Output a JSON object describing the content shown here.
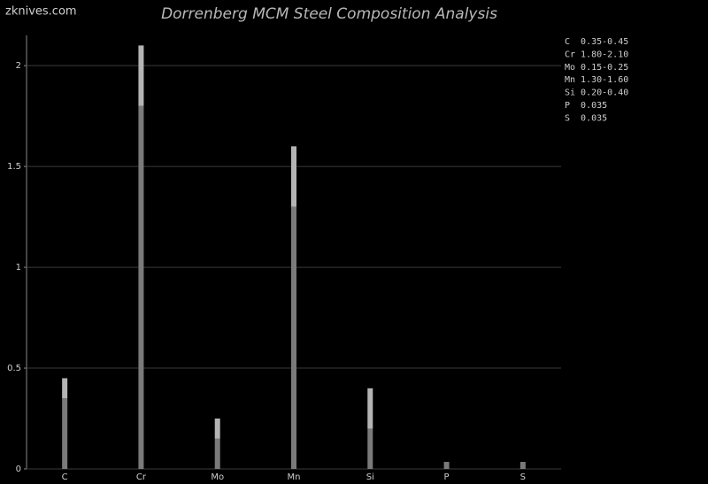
{
  "chart_data": {
    "type": "bar",
    "stacked": true,
    "title": "Dorrenberg MCM Steel Composition Analysis",
    "watermark": "zknives.com",
    "categories": [
      "C",
      "Cr",
      "Mo",
      "Mn",
      "Si",
      "P",
      "S"
    ],
    "series": [
      {
        "color": "#7a7a7a",
        "values": [
          0.35,
          1.8,
          0.15,
          1.3,
          0.2,
          0.035,
          0.035
        ]
      },
      {
        "color": "#b4b4b4",
        "values": [
          0.1,
          0.3,
          0.1,
          0.3,
          0.2,
          null,
          null
        ]
      }
    ],
    "ylim": [
      0,
      2.15
    ],
    "yticks": [
      0,
      0.5,
      1,
      1.5,
      2
    ],
    "grid": true,
    "annotations": [
      "C  0.35-0.45",
      "Cr 1.80-2.10",
      "Mo 0.15-0.25",
      "Mn 1.30-1.60",
      "Si 0.20-0.40",
      "P  0.035",
      "S  0.035"
    ]
  }
}
